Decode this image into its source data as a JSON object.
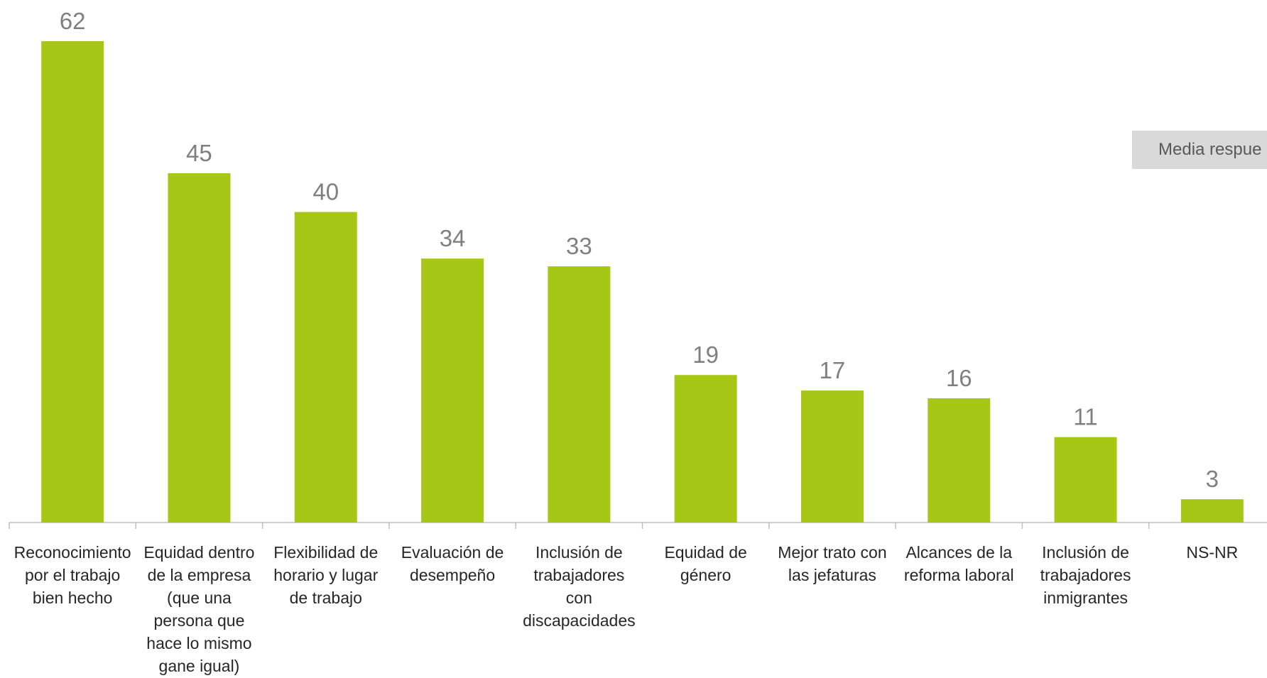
{
  "chart_data": {
    "type": "bar",
    "categories": [
      "Reconocimiento por el trabajo bien hecho",
      "Equidad dentro de la empresa (que una persona que hace lo mismo gane igual)",
      "Flexibilidad de horario y lugar de trabajo",
      "Evaluación de desempeño",
      "Inclusión de trabajadores con discapacidades",
      "Equidad de género",
      "Mejor trato con las jefaturas",
      "Alcances de la reforma laboral",
      "Inclusión de trabajadores inmigrantes",
      "NS-NR"
    ],
    "values": [
      62,
      45,
      40,
      34,
      33,
      19,
      17,
      16,
      11,
      3
    ],
    "data_labels": true,
    "ylim": [
      0,
      62
    ],
    "grid": false,
    "bar_color": "#a7c716",
    "annotation": "Media respue"
  }
}
